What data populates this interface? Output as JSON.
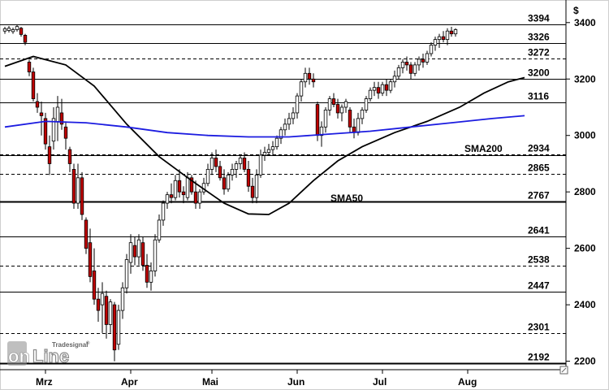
{
  "chart_data": {
    "type": "candlestick",
    "currency_label": "$",
    "y_axis": {
      "min": 2170,
      "max": 3480,
      "ticks": [
        2200,
        2400,
        2600,
        2800,
        3000,
        3200,
        3400
      ]
    },
    "x_axis": {
      "months": [
        {
          "label": "Mrz",
          "day": 10
        },
        {
          "label": "Apr",
          "day": 31
        },
        {
          "label": "Mai",
          "day": 51
        },
        {
          "label": "Jun",
          "day": 72
        },
        {
          "label": "Jul",
          "day": 93
        },
        {
          "label": "Aug",
          "day": 114
        }
      ],
      "total_days": 133
    },
    "levels": [
      {
        "value": 3394,
        "label": "3394",
        "style": "solid"
      },
      {
        "value": 3326,
        "label": "3326",
        "style": "solid"
      },
      {
        "value": 3272,
        "label": "3272",
        "style": "dashed"
      },
      {
        "value": 3200,
        "label": "3200",
        "style": "solid"
      },
      {
        "value": 3116,
        "label": "3116",
        "style": "solid"
      },
      {
        "value": 2934,
        "label": "2934",
        "style": "dashed"
      },
      {
        "value": 2930,
        "label": "",
        "style": "solid"
      },
      {
        "value": 2865,
        "label": "2865",
        "style": "dashed"
      },
      {
        "value": 2767,
        "label": "2767",
        "style": "solid-thick"
      },
      {
        "value": 2641,
        "label": "2641",
        "style": "solid"
      },
      {
        "value": 2538,
        "label": "2538",
        "style": "dashed"
      },
      {
        "value": 2447,
        "label": "2447",
        "style": "solid"
      },
      {
        "value": 2301,
        "label": "2301",
        "style": "dashed"
      },
      {
        "value": 2192,
        "label": "2192",
        "style": "solid-thick"
      }
    ],
    "candles": [
      [
        3370,
        3385,
        3360,
        3378
      ],
      [
        3372,
        3388,
        3365,
        3380
      ],
      [
        3368,
        3382,
        3360,
        3375
      ],
      [
        3375,
        3392,
        3368,
        3386
      ],
      [
        3380,
        3385,
        3350,
        3358
      ],
      [
        3355,
        3360,
        3320,
        3330
      ],
      [
        3260,
        3268,
        3210,
        3225
      ],
      [
        3225,
        3240,
        3120,
        3130
      ],
      [
        3120,
        3150,
        3080,
        3100
      ],
      [
        3080,
        3120,
        3000,
        3070
      ],
      [
        3060,
        3080,
        2950,
        2970
      ],
      [
        2960,
        3000,
        2860,
        2900
      ],
      [
        2980,
        3100,
        2950,
        3060
      ],
      [
        3050,
        3140,
        2980,
        3100
      ],
      [
        3080,
        3130,
        3020,
        3040
      ],
      [
        3030,
        3050,
        2950,
        2990
      ],
      [
        2950,
        2960,
        2870,
        2900
      ],
      [
        2880,
        2900,
        2740,
        2760
      ],
      [
        2760,
        2900,
        2740,
        2850
      ],
      [
        2850,
        2870,
        2700,
        2720
      ],
      [
        2700,
        2710,
        2580,
        2600
      ],
      [
        2620,
        2670,
        2480,
        2500
      ],
      [
        2520,
        2600,
        2400,
        2420
      ],
      [
        2420,
        2460,
        2340,
        2380
      ],
      [
        2400,
        2480,
        2300,
        2440
      ],
      [
        2430,
        2450,
        2280,
        2330
      ],
      [
        2330,
        2420,
        2300,
        2410
      ],
      [
        2400,
        2410,
        2200,
        2240
      ],
      [
        2260,
        2400,
        2240,
        2380
      ],
      [
        2380,
        2480,
        2350,
        2460
      ],
      [
        2460,
        2580,
        2440,
        2560
      ],
      [
        2550,
        2650,
        2510,
        2620
      ],
      [
        2610,
        2640,
        2540,
        2570
      ],
      [
        2570,
        2650,
        2540,
        2630
      ],
      [
        2620,
        2640,
        2520,
        2540
      ],
      [
        2540,
        2580,
        2460,
        2480
      ],
      [
        2480,
        2550,
        2450,
        2520
      ],
      [
        2520,
        2650,
        2500,
        2630
      ],
      [
        2630,
        2720,
        2620,
        2700
      ],
      [
        2700,
        2770,
        2680,
        2760
      ],
      [
        2760,
        2800,
        2740,
        2790
      ],
      [
        2790,
        2830,
        2760,
        2780
      ],
      [
        2780,
        2860,
        2770,
        2840
      ],
      [
        2840,
        2880,
        2780,
        2800
      ],
      [
        2800,
        2820,
        2760,
        2790
      ],
      [
        2780,
        2870,
        2770,
        2850
      ],
      [
        2850,
        2860,
        2790,
        2800
      ],
      [
        2800,
        2840,
        2740,
        2760
      ],
      [
        2760,
        2810,
        2740,
        2800
      ],
      [
        2800,
        2850,
        2790,
        2830
      ],
      [
        2830,
        2900,
        2820,
        2880
      ],
      [
        2880,
        2940,
        2860,
        2920
      ],
      [
        2920,
        2950,
        2870,
        2890
      ],
      [
        2890,
        2910,
        2840,
        2850
      ],
      [
        2850,
        2880,
        2790,
        2810
      ],
      [
        2810,
        2870,
        2800,
        2860
      ],
      [
        2860,
        2900,
        2840,
        2880
      ],
      [
        2880,
        2910,
        2850,
        2900
      ],
      [
        2900,
        2930,
        2880,
        2920
      ],
      [
        2920,
        2940,
        2870,
        2880
      ],
      [
        2880,
        2910,
        2800,
        2820
      ],
      [
        2820,
        2850,
        2760,
        2780
      ],
      [
        2780,
        2880,
        2760,
        2860
      ],
      [
        2860,
        2950,
        2850,
        2930
      ],
      [
        2930,
        2960,
        2910,
        2940
      ],
      [
        2940,
        2970,
        2930,
        2950
      ],
      [
        2950,
        2980,
        2930,
        2960
      ],
      [
        2960,
        3000,
        2950,
        2990
      ],
      [
        2990,
        3030,
        2970,
        3020
      ],
      [
        3020,
        3060,
        3000,
        3040
      ],
      [
        3040,
        3080,
        3020,
        3060
      ],
      [
        3060,
        3100,
        3040,
        3080
      ],
      [
        3080,
        3150,
        3060,
        3140
      ],
      [
        3140,
        3200,
        3120,
        3190
      ],
      [
        3190,
        3240,
        3170,
        3220
      ],
      [
        3220,
        3240,
        3180,
        3200
      ],
      [
        3200,
        3220,
        3170,
        3190
      ],
      [
        3110,
        3120,
        2980,
        3000
      ],
      [
        3000,
        3050,
        2960,
        3030
      ],
      [
        3030,
        3100,
        3010,
        3090
      ],
      [
        3090,
        3140,
        3070,
        3130
      ],
      [
        3130,
        3150,
        3100,
        3110
      ],
      [
        3110,
        3130,
        3060,
        3080
      ],
      [
        3080,
        3110,
        3050,
        3100
      ],
      [
        3100,
        3130,
        3080,
        3120
      ],
      [
        3090,
        3100,
        3010,
        3030
      ],
      [
        3030,
        3060,
        2990,
        3010
      ],
      [
        3010,
        3080,
        3000,
        3060
      ],
      [
        3060,
        3100,
        3040,
        3090
      ],
      [
        3090,
        3140,
        3080,
        3130
      ],
      [
        3130,
        3170,
        3120,
        3160
      ],
      [
        3160,
        3190,
        3140,
        3170
      ],
      [
        3170,
        3190,
        3130,
        3150
      ],
      [
        3150,
        3190,
        3140,
        3180
      ],
      [
        3180,
        3200,
        3140,
        3160
      ],
      [
        3160,
        3200,
        3150,
        3190
      ],
      [
        3190,
        3230,
        3170,
        3210
      ],
      [
        3210,
        3250,
        3200,
        3240
      ],
      [
        3240,
        3270,
        3220,
        3260
      ],
      [
        3260,
        3280,
        3230,
        3250
      ],
      [
        3250,
        3260,
        3200,
        3220
      ],
      [
        3220,
        3260,
        3210,
        3250
      ],
      [
        3250,
        3280,
        3230,
        3270
      ],
      [
        3270,
        3290,
        3240,
        3260
      ],
      [
        3260,
        3300,
        3250,
        3290
      ],
      [
        3290,
        3330,
        3280,
        3320
      ],
      [
        3320,
        3350,
        3300,
        3340
      ],
      [
        3340,
        3360,
        3310,
        3350
      ],
      [
        3350,
        3370,
        3330,
        3340
      ],
      [
        3340,
        3380,
        3320,
        3370
      ],
      [
        3370,
        3385,
        3350,
        3360
      ],
      [
        3360,
        3380,
        3350,
        3375
      ]
    ],
    "sma50": {
      "label": "SMA50",
      "color": "#000000",
      "points": [
        [
          0,
          3245
        ],
        [
          7,
          3280
        ],
        [
          15,
          3250
        ],
        [
          22,
          3175
        ],
        [
          30,
          3040
        ],
        [
          38,
          2925
        ],
        [
          46,
          2840
        ],
        [
          54,
          2760
        ],
        [
          60,
          2722
        ],
        [
          65,
          2720
        ],
        [
          70,
          2760
        ],
        [
          76,
          2840
        ],
        [
          82,
          2910
        ],
        [
          88,
          2960
        ],
        [
          96,
          3010
        ],
        [
          104,
          3050
        ],
        [
          112,
          3100
        ],
        [
          118,
          3150
        ],
        [
          124,
          3190
        ],
        [
          128,
          3205
        ]
      ]
    },
    "sma200": {
      "label": "SMA200",
      "color": "#1c1ce0",
      "points": [
        [
          0,
          3030
        ],
        [
          10,
          3050
        ],
        [
          20,
          3045
        ],
        [
          30,
          3030
        ],
        [
          40,
          3010
        ],
        [
          50,
          3000
        ],
        [
          60,
          2995
        ],
        [
          70,
          2995
        ],
        [
          80,
          3005
        ],
        [
          90,
          3015
        ],
        [
          100,
          3030
        ],
        [
          110,
          3045
        ],
        [
          120,
          3060
        ],
        [
          128,
          3070
        ]
      ]
    }
  },
  "logo": {
    "brand": "Tradesignal",
    "on": "on",
    "line": "Line",
    "trademark": "®"
  }
}
